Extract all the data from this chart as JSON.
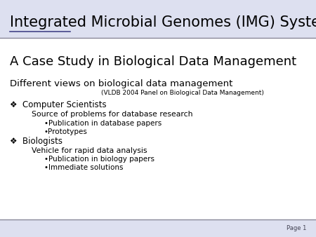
{
  "title": "Integrated Microbial Genomes (IMG) System",
  "title_underline_word": "Integrated",
  "subtitle": "A Case Study in Biological Data Management",
  "section_header": "Different views on biological data management",
  "section_sub": "(VLDB 2004 Panel on Biological Data Management)",
  "bullet1_main": "❖  Computer Scientists",
  "bullet1_sub1": "Source of problems for database research",
  "bullet1_sub2a": "•Publication in database papers",
  "bullet1_sub2b": "•Prototypes",
  "bullet2_main": "❖  Biologists",
  "bullet2_sub1": "Vehicle for rapid data analysis",
  "bullet2_sub2a": "•Publication in biology papers",
  "bullet2_sub2b": "•Immediate solutions",
  "page_label": "Page 1",
  "bg_color": "#ffffff",
  "title_bg_color": "#dde0f0",
  "footer_bg_color": "#dde0f0",
  "text_color": "#000000",
  "title_color": "#000000",
  "underline_color": "#444488",
  "line_color": "#888899",
  "page_label_color": "#444455"
}
